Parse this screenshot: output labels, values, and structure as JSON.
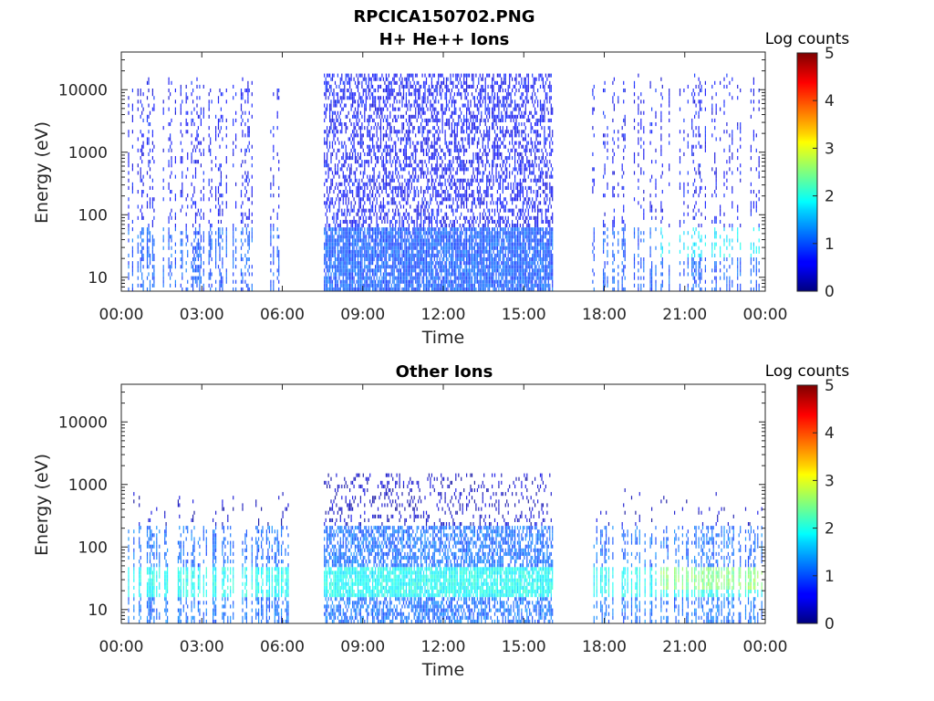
{
  "figure_title": "RPCICA150702.PNG",
  "colorbar_label": "Log counts",
  "colormap": "jet",
  "chart_data": [
    {
      "type": "heatmap",
      "title": "H+ He++ Ions",
      "xlabel": "Time",
      "ylabel": "Energy (eV)",
      "xticks": [
        "00:00",
        "03:00",
        "06:00",
        "09:00",
        "12:00",
        "15:00",
        "18:00",
        "21:00",
        "00:00"
      ],
      "xlim_hours": [
        0,
        24
      ],
      "yticks": [
        "10",
        "100",
        "1000",
        "10000"
      ],
      "ylim": [
        6,
        40000
      ],
      "yscale": "log",
      "clim": [
        0,
        5
      ],
      "cticks": [
        "0",
        "1",
        "2",
        "3",
        "4",
        "5"
      ],
      "data_intervals_hours": [
        [
          0.1,
          6.2
        ],
        [
          7.5,
          16.1
        ],
        [
          17.5,
          24
        ]
      ],
      "typical_log_counts": {
        "low_energy_10_60eV": 1.0,
        "above_100eV": 0.6,
        "late_hours_20_60eV": 1.8
      }
    },
    {
      "type": "heatmap",
      "title": "Other Ions",
      "xlabel": "Time",
      "ylabel": "Energy (eV)",
      "xticks": [
        "00:00",
        "03:00",
        "06:00",
        "09:00",
        "12:00",
        "15:00",
        "18:00",
        "21:00",
        "00:00"
      ],
      "xlim_hours": [
        0,
        24
      ],
      "yticks": [
        "10",
        "100",
        "1000",
        "10000"
      ],
      "ylim": [
        6,
        40000
      ],
      "yscale": "log",
      "clim": [
        0,
        5
      ],
      "cticks": [
        "0",
        "1",
        "2",
        "3",
        "4",
        "5"
      ],
      "data_intervals_hours": [
        [
          0.1,
          6.2
        ],
        [
          7.5,
          16.1
        ],
        [
          17.5,
          24
        ]
      ],
      "typical_log_counts": {
        "band_15_45eV": 1.9,
        "band_45_200eV": 1.1,
        "above_1000eV": 0.3,
        "late_hours_20_45eV": 2.5
      }
    }
  ]
}
